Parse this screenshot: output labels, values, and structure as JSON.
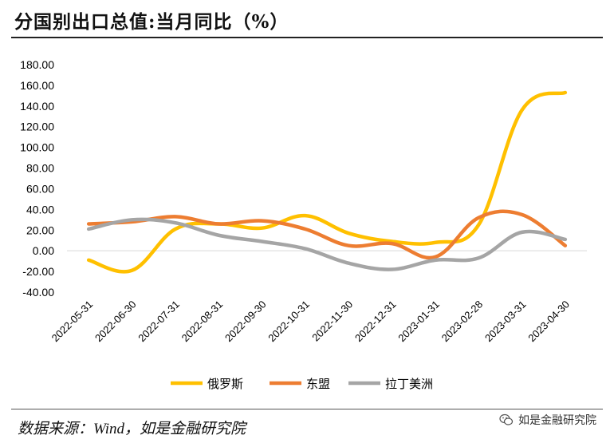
{
  "header": {
    "title": "分国别出口总值:当月同比（%）"
  },
  "footer": {
    "source": "数据来源：Wind，如是金融研究院",
    "watermark": "如是金融研究院",
    "watermark_icon": "wechat-icon"
  },
  "chart_data": {
    "type": "line",
    "title": "分国别出口总值:当月同比（%）",
    "xlabel": "",
    "ylabel": "",
    "ylim": [
      -40,
      180
    ],
    "yticks": [
      "180.00",
      "160.00",
      "140.00",
      "120.00",
      "100.00",
      "80.00",
      "60.00",
      "40.00",
      "20.00",
      "0.00",
      "-20.00",
      "-40.00"
    ],
    "categories": [
      "2022-05-31",
      "2022-06-30",
      "2022-07-31",
      "2022-08-31",
      "2022-09-30",
      "2022-10-31",
      "2022-11-30",
      "2022-12-31",
      "2023-01-31",
      "2023-02-28",
      "2023-03-31",
      "2023-04-30"
    ],
    "grid": false,
    "legend_position": "bottom",
    "series": [
      {
        "name": "俄罗斯",
        "color": "#FFC000",
        "values": [
          -9,
          -19,
          21,
          26,
          22,
          34,
          17,
          9,
          8,
          25,
          136,
          153
        ]
      },
      {
        "name": "东盟",
        "color": "#ED7D31",
        "values": [
          26,
          28,
          33,
          26,
          29,
          21,
          5,
          7,
          -6,
          32,
          35,
          5
        ]
      },
      {
        "name": "拉丁美洲",
        "color": "#A5A5A5",
        "values": [
          21,
          30,
          27,
          15,
          9,
          2,
          -12,
          -18,
          -9,
          -7,
          18,
          11
        ]
      }
    ]
  }
}
